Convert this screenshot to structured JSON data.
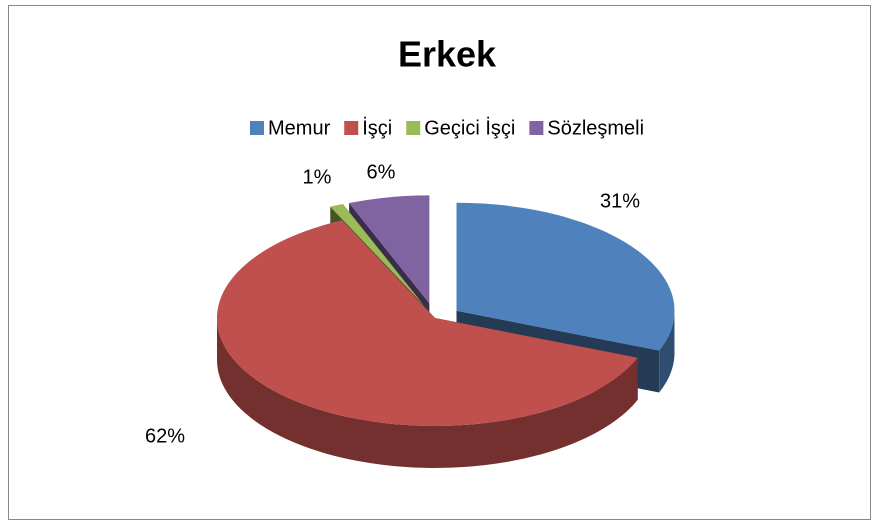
{
  "chart_data": {
    "type": "pie",
    "title": "Erkek",
    "categories": [
      "Memur",
      "İşçi",
      "Geçici İşçi",
      "Sözleşmeli"
    ],
    "values": [
      31,
      62,
      1,
      6
    ],
    "value_labels": [
      "31%",
      "62%",
      "1%",
      "6%"
    ],
    "colors": [
      "#4f81bd",
      "#c0504d",
      "#9bbb59",
      "#8064a2"
    ],
    "legend": "top"
  }
}
